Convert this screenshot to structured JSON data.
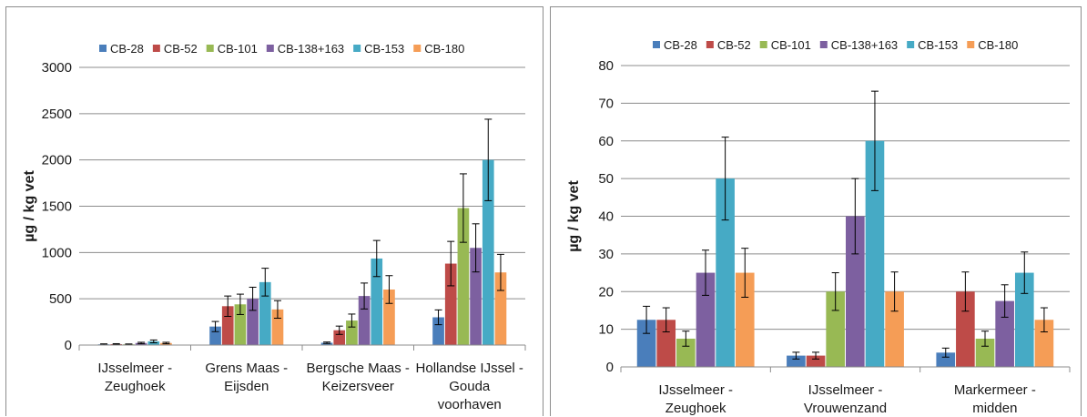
{
  "colors": {
    "CB-28": "#4a7ebb",
    "CB-52": "#be4b48",
    "CB-101": "#98b954",
    "CB-138+163": "#7d60a0",
    "CB-153": "#46aac5",
    "CB-180": "#f59d56"
  },
  "chart_data": [
    {
      "type": "bar",
      "ylabel": "µg / kg vet",
      "ylim": [
        0,
        3000
      ],
      "yticks": [
        0,
        500,
        1000,
        1500,
        2000,
        2500,
        3000
      ],
      "ytick_labels": [
        "0",
        "500",
        "1000",
        "1500",
        "2000",
        "2500",
        "3000"
      ],
      "grid": true,
      "legend": "top",
      "categories": [
        [
          "IJsselmeer -",
          "Zeughoek"
        ],
        [
          "Grens Maas -",
          "Eijsden"
        ],
        [
          "Bergsche Maas -",
          "Keizersveer"
        ],
        [
          "Hollandse IJssel -",
          "Gouda",
          "voorhaven"
        ]
      ],
      "series": [
        {
          "name": "CB-28",
          "values": [
            8,
            200,
            25,
            300
          ],
          "errors": [
            5,
            55,
            8,
            80
          ]
        },
        {
          "name": "CB-52",
          "values": [
            10,
            420,
            160,
            880
          ],
          "errors": [
            5,
            110,
            45,
            240
          ]
        },
        {
          "name": "CB-101",
          "values": [
            8,
            440,
            265,
            1480
          ],
          "errors": [
            4,
            110,
            70,
            370
          ]
        },
        {
          "name": "CB-138+163",
          "values": [
            22,
            500,
            530,
            1050
          ],
          "errors": [
            8,
            125,
            140,
            260
          ]
        },
        {
          "name": "CB-153",
          "values": [
            40,
            680,
            935,
            2000
          ],
          "errors": [
            15,
            150,
            195,
            440
          ]
        },
        {
          "name": "CB-180",
          "values": [
            22,
            385,
            600,
            785
          ],
          "errors": [
            8,
            95,
            150,
            195
          ]
        }
      ]
    },
    {
      "type": "bar",
      "ylabel": "µg / kg vet",
      "ylim": [
        0,
        80
      ],
      "yticks": [
        0,
        10,
        20,
        30,
        40,
        50,
        60,
        70,
        80
      ],
      "ytick_labels": [
        "0",
        "10",
        "20",
        "30",
        "40",
        "50",
        "60",
        "70",
        "80"
      ],
      "grid": true,
      "legend": "top",
      "categories": [
        [
          "IJsselmeer -",
          "Zeughoek"
        ],
        [
          "IJsselmeer -",
          "Vrouwenzand"
        ],
        [
          "Markermeer -",
          "midden"
        ]
      ],
      "series": [
        {
          "name": "CB-28",
          "values": [
            12.5,
            3,
            3.8
          ],
          "errors": [
            3.6,
            0.9,
            1.2
          ]
        },
        {
          "name": "CB-52",
          "values": [
            12.5,
            3,
            20
          ],
          "errors": [
            3.2,
            0.9,
            5.2
          ]
        },
        {
          "name": "CB-101",
          "values": [
            7.5,
            20,
            7.5
          ],
          "errors": [
            2.0,
            5.0,
            2.0
          ]
        },
        {
          "name": "CB-138+163",
          "values": [
            25,
            40,
            17.5
          ],
          "errors": [
            6.0,
            10.0,
            4.3
          ]
        },
        {
          "name": "CB-153",
          "values": [
            50,
            60,
            25
          ],
          "errors": [
            11.0,
            13.2,
            5.5
          ]
        },
        {
          "name": "CB-180",
          "values": [
            25,
            20,
            12.5
          ],
          "errors": [
            6.5,
            5.2,
            3.2
          ]
        }
      ]
    }
  ]
}
